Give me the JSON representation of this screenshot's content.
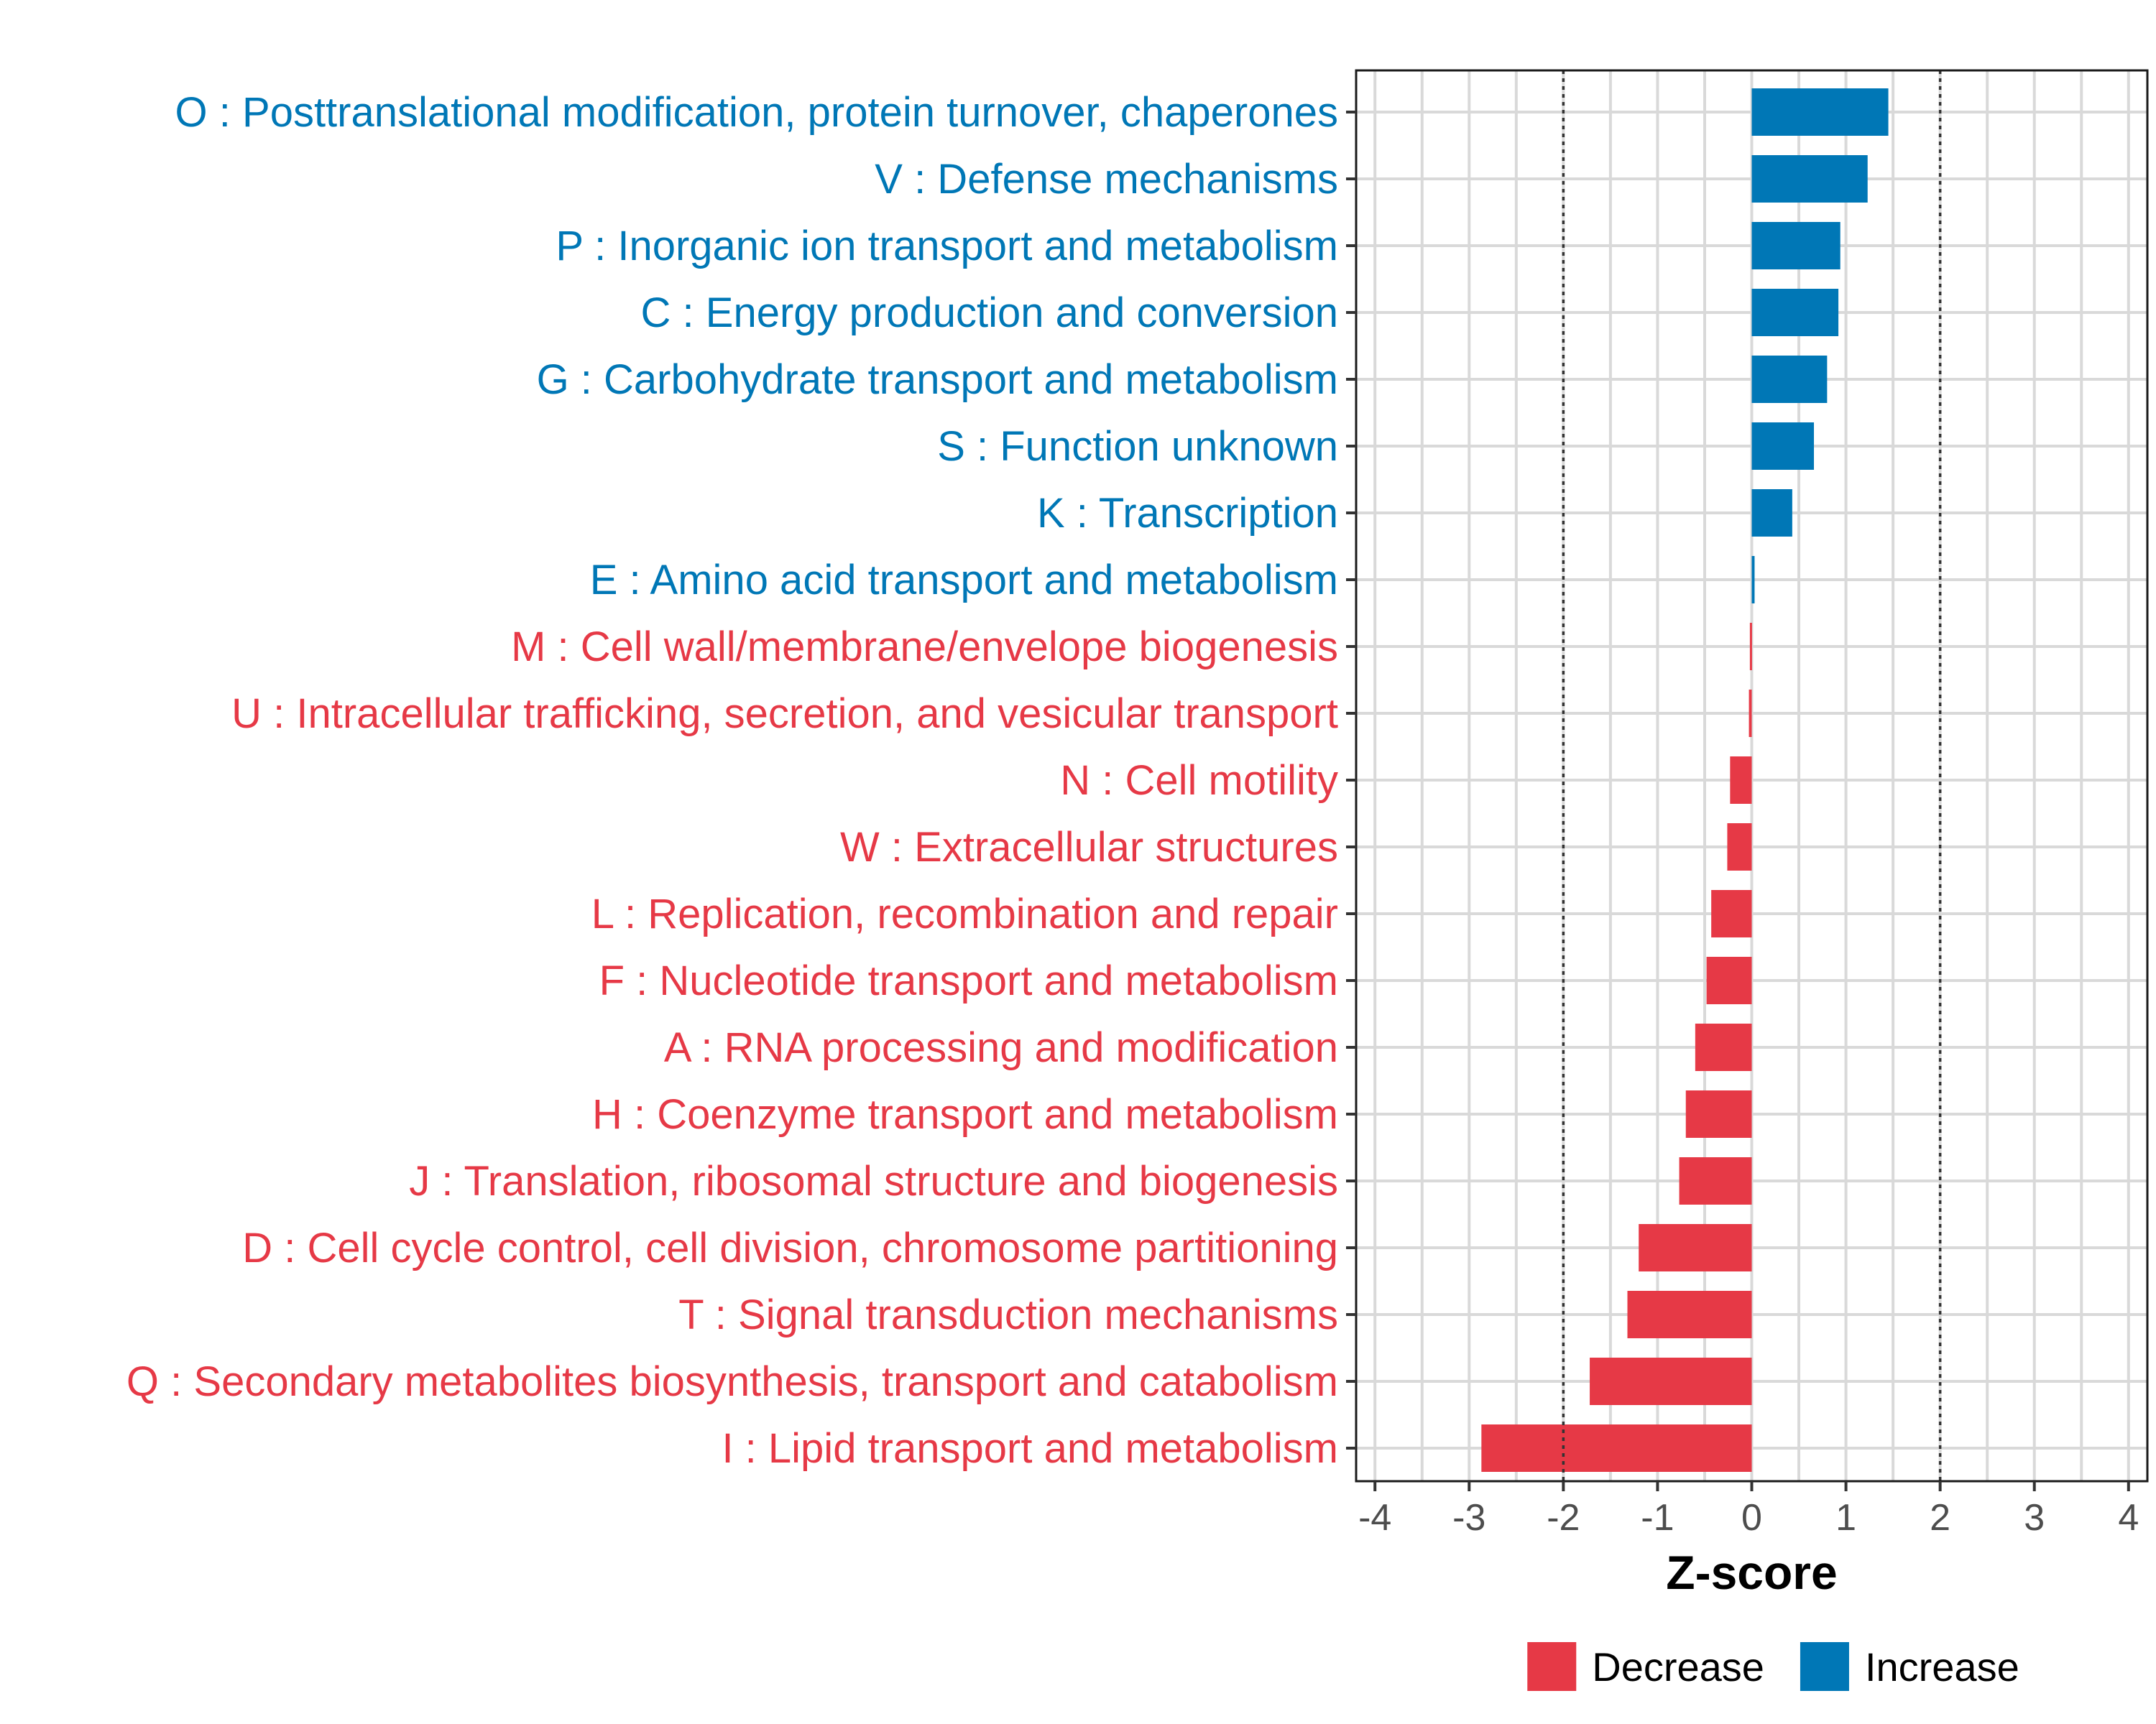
{
  "chart_data": {
    "type": "bar",
    "orientation": "horizontal",
    "categories": [
      "O : Posttranslational modification, protein turnover, chaperones",
      "V : Defense mechanisms",
      "P : Inorganic ion transport and metabolism",
      "C : Energy production and conversion",
      "G : Carbohydrate transport and metabolism",
      "S : Function unknown",
      "K : Transcription",
      "E : Amino acid transport and metabolism",
      "M : Cell wall/membrane/envelope biogenesis",
      "U : Intracellular trafficking, secretion, and vesicular transport",
      "N : Cell motility",
      "W : Extracellular structures",
      "L : Replication, recombination and repair",
      "F : Nucleotide transport and metabolism",
      "A : RNA processing and modification",
      "H : Coenzyme transport and metabolism",
      "J : Translation, ribosomal structure and biogenesis",
      "D : Cell cycle control, cell division, chromosome partitioning",
      "T : Signal transduction mechanisms",
      "Q : Secondary metabolites biosynthesis, transport and catabolism",
      "I : Lipid transport and metabolism"
    ],
    "values": [
      1.45,
      1.23,
      0.94,
      0.92,
      0.8,
      0.66,
      0.43,
      0.03,
      -0.02,
      -0.03,
      -0.23,
      -0.26,
      -0.43,
      -0.48,
      -0.6,
      -0.7,
      -0.77,
      -1.2,
      -1.32,
      -1.72,
      -2.87
    ],
    "groups": [
      "Increase",
      "Increase",
      "Increase",
      "Increase",
      "Increase",
      "Increase",
      "Increase",
      "Increase",
      "Decrease",
      "Decrease",
      "Decrease",
      "Decrease",
      "Decrease",
      "Decrease",
      "Decrease",
      "Decrease",
      "Decrease",
      "Decrease",
      "Decrease",
      "Decrease",
      "Decrease"
    ],
    "xlabel": "Z-score",
    "ylabel": "",
    "xlim": [
      -4.2,
      4.2
    ],
    "xticks": [
      -4,
      -3,
      -2,
      -1,
      0,
      1,
      2,
      3,
      4
    ],
    "xtick_labels": [
      "-4",
      "-3",
      "-2",
      "-1",
      "0",
      "1",
      "2",
      "3",
      "4"
    ],
    "reference_lines": [
      -2,
      2
    ],
    "grid": true,
    "legend": {
      "position": "bottom",
      "entries": [
        {
          "label": "Decrease",
          "color": "#e63946"
        },
        {
          "label": "Increase",
          "color": "#0077b6"
        }
      ]
    }
  }
}
